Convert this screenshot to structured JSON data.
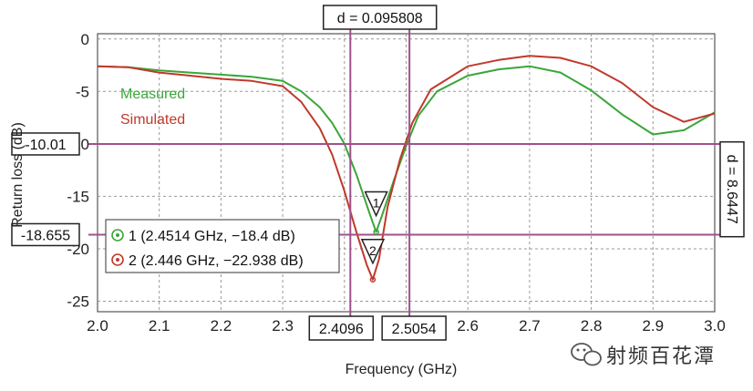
{
  "chart_data": {
    "type": "line",
    "xlabel": "Frequency (GHz)",
    "ylabel": "Return loss (dB)",
    "xlim": [
      2.0,
      3.0
    ],
    "ylim": [
      -26,
      0.5
    ],
    "grid": true,
    "x_ticks": [
      "2.0",
      "2.1",
      "2.2",
      "2.3",
      "2.4",
      "2.5",
      "2.6",
      "2.7",
      "2.8",
      "2.9",
      "3.0"
    ],
    "y_ticks": [
      "0",
      "-5",
      "-10",
      "-15",
      "-20",
      "-25"
    ],
    "x_tick_values": [
      2.0,
      2.1,
      2.2,
      2.3,
      2.4,
      2.5,
      2.6,
      2.7,
      2.8,
      2.9,
      3.0
    ],
    "y_tick_values": [
      0,
      -5,
      -10,
      -15,
      -20,
      -25
    ],
    "series": [
      {
        "name": "Measured",
        "color": "#3aa63a",
        "x": [
          2.0,
          2.05,
          2.1,
          2.15,
          2.2,
          2.25,
          2.3,
          2.33,
          2.36,
          2.38,
          2.4,
          2.42,
          2.44,
          2.4514,
          2.46,
          2.48,
          2.5,
          2.52,
          2.55,
          2.6,
          2.65,
          2.7,
          2.75,
          2.8,
          2.85,
          2.9,
          2.95,
          3.0
        ],
        "y": [
          -2.6,
          -2.7,
          -3.0,
          -3.2,
          -3.4,
          -3.6,
          -4.0,
          -5.0,
          -6.5,
          -8.0,
          -10.0,
          -13.0,
          -16.5,
          -18.4,
          -17.0,
          -13.5,
          -10.2,
          -7.3,
          -5.0,
          -3.5,
          -2.9,
          -2.6,
          -3.2,
          -4.9,
          -7.2,
          -9.1,
          -8.7,
          -7.0
        ]
      },
      {
        "name": "Simulated",
        "color": "#c0392b",
        "x": [
          2.0,
          2.05,
          2.1,
          2.15,
          2.2,
          2.25,
          2.3,
          2.33,
          2.36,
          2.38,
          2.4,
          2.42,
          2.436,
          2.446,
          2.456,
          2.47,
          2.49,
          2.51,
          2.54,
          2.6,
          2.65,
          2.7,
          2.75,
          2.8,
          2.85,
          2.9,
          2.95,
          3.0
        ],
        "y": [
          -2.6,
          -2.7,
          -3.2,
          -3.5,
          -3.8,
          -4.0,
          -4.5,
          -6.0,
          -8.5,
          -11.0,
          -14.5,
          -18.5,
          -21.5,
          -22.938,
          -21.0,
          -16.0,
          -11.5,
          -8.0,
          -4.8,
          -2.6,
          -2.0,
          -1.6,
          -1.8,
          -2.6,
          -4.2,
          -6.5,
          -7.9,
          -7.1
        ]
      }
    ],
    "vertical_markers": [
      {
        "value": 2.4096,
        "label": "2.4096"
      },
      {
        "value": 2.5054,
        "label": "2.5054"
      }
    ],
    "horizontal_markers": [
      {
        "value": -10.01,
        "label": "-10.01"
      },
      {
        "value": -18.655,
        "label": "-18.655"
      }
    ],
    "delta_x_label": "d = 0.095808",
    "delta_y_label": "d = 8.6447",
    "legend": {
      "placement": "top-left",
      "items": [
        {
          "text": "Measured",
          "color": "#3aa63a"
        },
        {
          "text": "Simulated",
          "color": "#c0392b"
        }
      ]
    },
    "point_markers": [
      {
        "id": "1",
        "x": 2.4514,
        "y": -18.4,
        "color": "#3aa63a",
        "text": "1 (2.4514 GHz, −18.4 dB)"
      },
      {
        "id": "2",
        "x": 2.446,
        "y": -22.938,
        "color": "#c0392b",
        "text": "2 (2.446 GHz, −22.938 dB)"
      }
    ],
    "marker_color": "#a0508c"
  },
  "watermark": {
    "text": "射频百花潭",
    "icon": "wechat-icon"
  }
}
